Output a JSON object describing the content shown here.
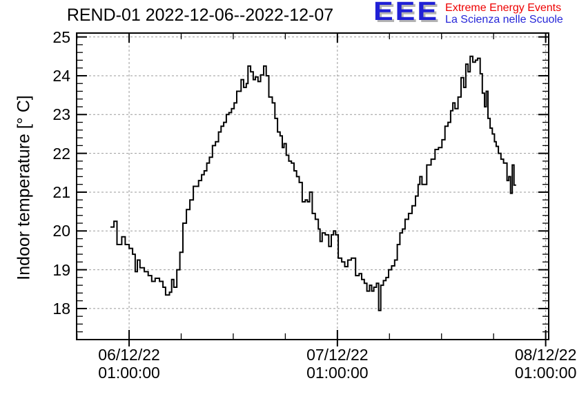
{
  "title": "REND-01 2022-12-06--2022-12-07",
  "logo": {
    "letters": "EEE",
    "line1": "Extreme Energy Events",
    "line2": "La Scienza nelle Scuole",
    "letters_color": "#2020d6",
    "line1_color": "#ee0000",
    "line2_color": "#2525d8",
    "shadow_color": "#b3b3b3"
  },
  "chart_data": {
    "type": "line",
    "step_interpolation": true,
    "title": "REND-01 2022-12-06--2022-12-07",
    "xlabel": "",
    "ylabel": "Indoor temperature [° C]",
    "ylim": [
      17.2,
      25.1
    ],
    "xlim_hours_from_first_major": [
      -6.05,
      48.35
    ],
    "grid": true,
    "legend": "none",
    "line_color": "#000000",
    "grid_color": "#999999",
    "frame_color": "#000000",
    "y_major_ticks": [
      18,
      19,
      20,
      21,
      22,
      23,
      24,
      25
    ],
    "y_minor_step": 0.2,
    "x_major_ticks": [
      {
        "hours": 0,
        "label": [
          "06/12/22",
          "01:00:00"
        ]
      },
      {
        "hours": 24,
        "label": [
          "07/12/22",
          "01:00:00"
        ]
      },
      {
        "hours": 48,
        "label": [
          "08/12/22",
          "01:00:00"
        ]
      }
    ],
    "x_minor_ticks_hours": [
      -6,
      6,
      12,
      18,
      30,
      36,
      42
    ],
    "points_hours_temp": [
      [
        -2.15,
        20.1
      ],
      [
        -1.75,
        20.25
      ],
      [
        -1.4,
        19.65
      ],
      [
        -0.85,
        19.85
      ],
      [
        -0.45,
        19.65
      ],
      [
        0.0,
        19.55
      ],
      [
        0.4,
        19.4
      ],
      [
        0.7,
        18.95
      ],
      [
        0.95,
        19.25
      ],
      [
        1.25,
        19.05
      ],
      [
        1.75,
        18.95
      ],
      [
        2.2,
        18.85
      ],
      [
        2.6,
        18.7
      ],
      [
        3.0,
        18.78
      ],
      [
        3.5,
        18.7
      ],
      [
        3.9,
        18.55
      ],
      [
        4.2,
        18.35
      ],
      [
        4.65,
        18.42
      ],
      [
        4.9,
        18.75
      ],
      [
        5.15,
        18.55
      ],
      [
        5.5,
        19.0
      ],
      [
        5.85,
        19.45
      ],
      [
        6.2,
        20.2
      ],
      [
        6.6,
        20.55
      ],
      [
        7.0,
        20.8
      ],
      [
        7.4,
        21.15
      ],
      [
        8.0,
        21.3
      ],
      [
        8.35,
        21.45
      ],
      [
        8.65,
        21.55
      ],
      [
        8.95,
        21.75
      ],
      [
        9.25,
        21.9
      ],
      [
        9.6,
        22.2
      ],
      [
        9.95,
        22.3
      ],
      [
        10.3,
        22.55
      ],
      [
        10.6,
        22.7
      ],
      [
        10.9,
        22.8
      ],
      [
        11.2,
        23.0
      ],
      [
        11.5,
        23.05
      ],
      [
        11.8,
        23.15
      ],
      [
        12.1,
        23.3
      ],
      [
        12.4,
        23.6
      ],
      [
        12.9,
        23.9
      ],
      [
        13.2,
        23.7
      ],
      [
        13.5,
        23.8
      ],
      [
        13.7,
        24.25
      ],
      [
        14.0,
        24.1
      ],
      [
        14.3,
        23.9
      ],
      [
        14.55,
        23.97
      ],
      [
        14.85,
        23.85
      ],
      [
        15.15,
        24.02
      ],
      [
        15.5,
        24.25
      ],
      [
        15.8,
        24.0
      ],
      [
        16.1,
        23.45
      ],
      [
        16.5,
        23.3
      ],
      [
        16.8,
        22.9
      ],
      [
        17.1,
        22.55
      ],
      [
        17.4,
        22.45
      ],
      [
        17.65,
        22.15
      ],
      [
        17.85,
        22.25
      ],
      [
        18.1,
        21.95
      ],
      [
        18.4,
        21.8
      ],
      [
        18.7,
        21.75
      ],
      [
        19.0,
        21.55
      ],
      [
        19.3,
        21.4
      ],
      [
        19.6,
        21.25
      ],
      [
        19.95,
        20.75
      ],
      [
        20.3,
        20.8
      ],
      [
        20.55,
        20.75
      ],
      [
        20.8,
        21.0
      ],
      [
        21.1,
        20.45
      ],
      [
        21.45,
        20.3
      ],
      [
        21.8,
        20.05
      ],
      [
        22.0,
        19.73
      ],
      [
        22.25,
        19.95
      ],
      [
        22.6,
        19.9
      ],
      [
        23.0,
        19.6
      ],
      [
        23.3,
        19.9
      ],
      [
        23.55,
        20.0
      ],
      [
        23.8,
        19.9
      ],
      [
        24.1,
        19.3
      ],
      [
        24.5,
        19.2
      ],
      [
        24.85,
        19.08
      ],
      [
        25.2,
        19.25
      ],
      [
        25.6,
        19.3
      ],
      [
        26.1,
        18.85
      ],
      [
        26.5,
        18.9
      ],
      [
        26.8,
        18.75
      ],
      [
        27.1,
        18.65
      ],
      [
        27.4,
        18.45
      ],
      [
        27.7,
        18.6
      ],
      [
        27.95,
        18.45
      ],
      [
        28.2,
        18.55
      ],
      [
        28.5,
        18.65
      ],
      [
        28.75,
        17.95
      ],
      [
        29.0,
        18.6
      ],
      [
        29.3,
        18.72
      ],
      [
        29.6,
        18.8
      ],
      [
        29.9,
        19.0
      ],
      [
        30.25,
        19.1
      ],
      [
        30.6,
        19.25
      ],
      [
        30.9,
        19.65
      ],
      [
        31.2,
        19.95
      ],
      [
        31.5,
        20.05
      ],
      [
        31.8,
        20.3
      ],
      [
        32.2,
        20.45
      ],
      [
        32.6,
        20.65
      ],
      [
        33.0,
        20.9
      ],
      [
        33.3,
        21.2
      ],
      [
        33.5,
        21.4
      ],
      [
        33.75,
        21.2
      ],
      [
        34.3,
        21.7
      ],
      [
        34.8,
        21.85
      ],
      [
        35.25,
        22.1
      ],
      [
        35.65,
        22.15
      ],
      [
        36.05,
        22.35
      ],
      [
        36.4,
        22.7
      ],
      [
        36.75,
        22.8
      ],
      [
        37.05,
        23.1
      ],
      [
        37.3,
        23.3
      ],
      [
        37.55,
        23.15
      ],
      [
        37.9,
        23.45
      ],
      [
        38.25,
        23.95
      ],
      [
        38.55,
        23.7
      ],
      [
        38.8,
        24.3
      ],
      [
        39.05,
        24.1
      ],
      [
        39.3,
        24.5
      ],
      [
        39.6,
        24.35
      ],
      [
        39.9,
        24.4
      ],
      [
        40.15,
        24.45
      ],
      [
        40.45,
        24.05
      ],
      [
        40.7,
        23.55
      ],
      [
        40.95,
        23.2
      ],
      [
        41.15,
        23.6
      ],
      [
        41.35,
        22.9
      ],
      [
        41.6,
        22.65
      ],
      [
        41.85,
        22.5
      ],
      [
        42.1,
        22.3
      ],
      [
        42.3,
        22.18
      ],
      [
        42.55,
        22.0
      ],
      [
        42.85,
        21.85
      ],
      [
        43.15,
        21.75
      ],
      [
        43.55,
        21.3
      ],
      [
        43.75,
        21.4
      ],
      [
        43.95,
        20.97
      ],
      [
        44.15,
        21.7
      ],
      [
        44.35,
        21.18
      ],
      [
        44.6,
        21.18
      ]
    ]
  }
}
